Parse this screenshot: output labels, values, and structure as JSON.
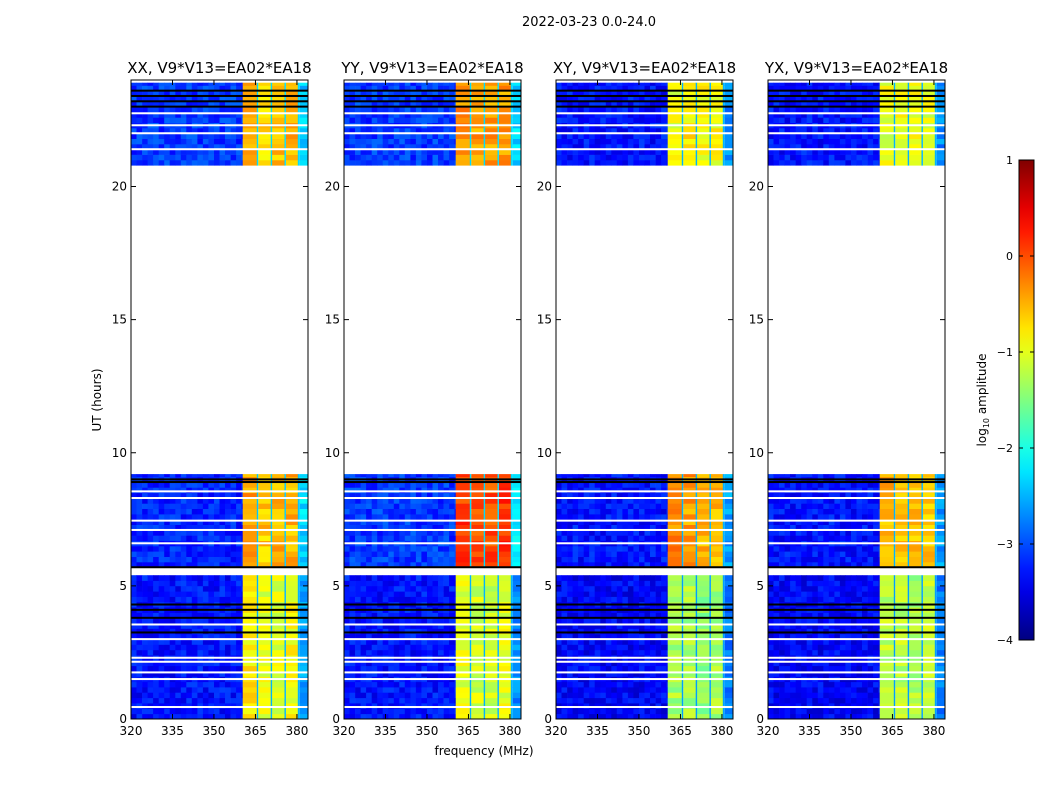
{
  "chart_data": {
    "type": "heatmap",
    "title": "2022-03-23 0.0-24.0",
    "xlabel": "frequency (MHz)",
    "ylabel": "UT (hours)",
    "xlim": [
      320,
      384
    ],
    "ylim": [
      0,
      24
    ],
    "xticks": [
      "320",
      "335",
      "350",
      "365",
      "380"
    ],
    "yticks": [
      "0",
      "5",
      "10",
      "15",
      "20"
    ],
    "colorbar": {
      "label": "log10 amplitude",
      "label_main": "log",
      "label_sub": "10",
      "label_rest": " amplitude",
      "range": [
        -4,
        1
      ],
      "ticks": [
        "1",
        "0",
        "−1",
        "−2",
        "−3",
        "−4"
      ],
      "colormap": "jet"
    },
    "time_segments": [
      [
        0,
        5.4
      ],
      [
        5.7,
        9.2
      ],
      [
        20.8,
        23.9
      ]
    ],
    "freq_bands": [
      [
        320,
        360.4
      ],
      [
        360.4,
        365.5
      ],
      [
        366,
        370.5
      ],
      [
        371,
        375.5
      ],
      [
        376,
        380.3
      ],
      [
        381,
        384
      ]
    ],
    "flagged_white_hours": [
      0.45,
      1.5,
      1.75,
      2.15,
      2.3,
      3.0,
      3.55,
      6.6,
      7.1,
      7.45,
      8.3,
      8.55,
      21.4,
      22.0,
      22.3,
      22.75
    ],
    "flagged_black_hours": [
      3.25,
      3.8,
      4.1,
      4.3,
      5.7,
      8.9,
      9.0,
      23.0,
      23.2,
      23.4,
      23.6
    ],
    "panels": [
      {
        "title": "XX, V9*V13=EA02*EA18",
        "values": [
          [
            -3.3,
            -0.8,
            -1.0,
            -1.0,
            -0.9,
            -2.6
          ],
          [
            -3.2,
            -0.4,
            -0.6,
            -0.5,
            -0.5,
            -2.3
          ],
          [
            -3.1,
            -0.5,
            -0.7,
            -0.6,
            -0.5,
            -2.4
          ]
        ]
      },
      {
        "title": "YY, V9*V13=EA02*EA18",
        "values": [
          [
            -3.3,
            -1.0,
            -1.1,
            -1.1,
            -1.0,
            -2.7
          ],
          [
            -3.1,
            0.1,
            0.0,
            0.0,
            0.1,
            -2.2
          ],
          [
            -3.1,
            -0.3,
            -0.4,
            -0.4,
            -0.4,
            -2.3
          ]
        ]
      },
      {
        "title": "XY, V9*V13=EA02*EA18",
        "values": [
          [
            -3.4,
            -1.3,
            -1.3,
            -1.4,
            -1.3,
            -2.8
          ],
          [
            -3.3,
            -0.3,
            -0.4,
            -0.5,
            -0.5,
            -2.6
          ],
          [
            -3.3,
            -1.0,
            -0.8,
            -0.9,
            -0.9,
            -2.7
          ]
        ]
      },
      {
        "title": "YX, V9*V13=EA02*EA18",
        "values": [
          [
            -3.4,
            -1.2,
            -1.2,
            -1.3,
            -1.2,
            -2.8
          ],
          [
            -3.3,
            -0.5,
            -0.6,
            -0.6,
            -0.6,
            -2.6
          ],
          [
            -3.3,
            -1.0,
            -0.9,
            -0.9,
            -1.0,
            -2.7
          ]
        ]
      }
    ]
  }
}
